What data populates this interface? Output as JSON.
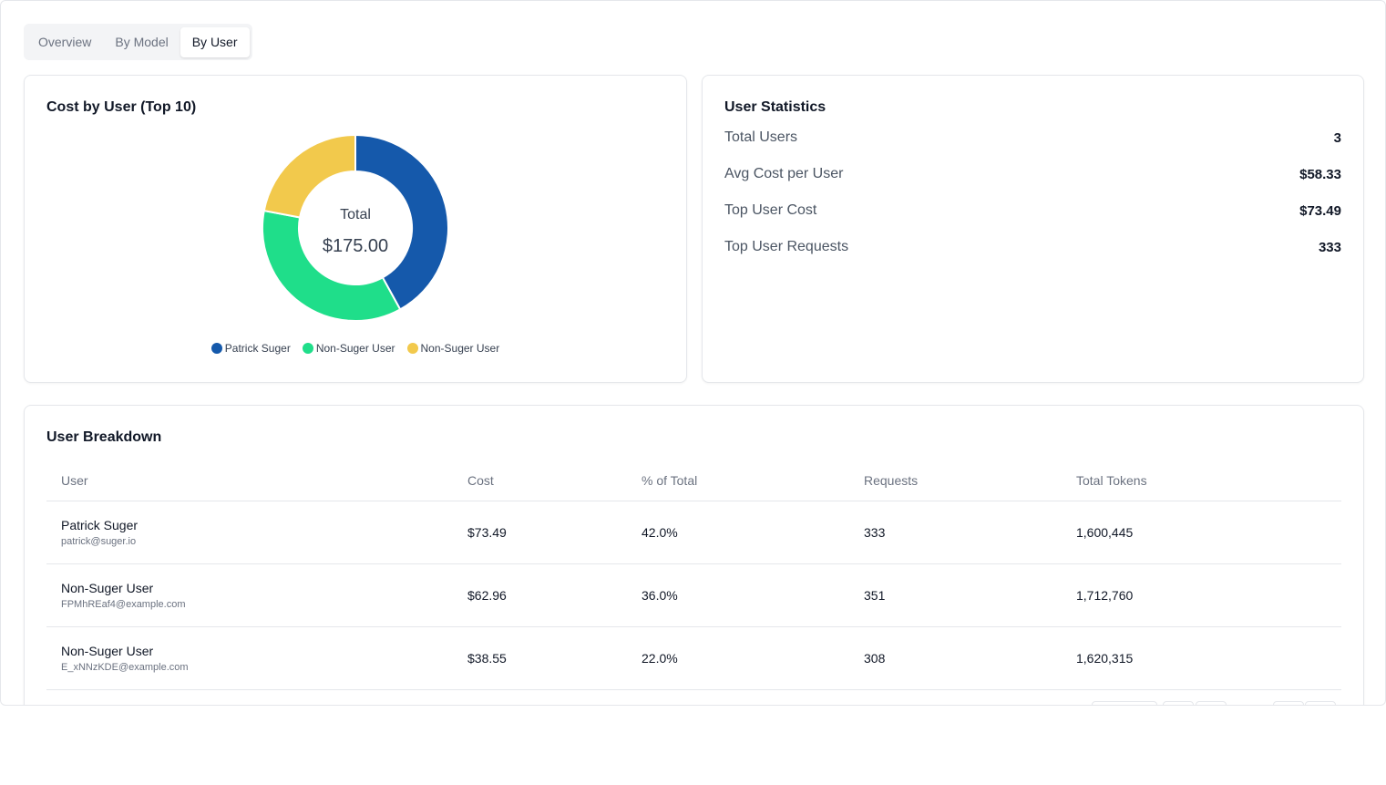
{
  "tabs": [
    {
      "label": "Overview",
      "active": false
    },
    {
      "label": "By Model",
      "active": false
    },
    {
      "label": "By User",
      "active": true
    }
  ],
  "cost_chart": {
    "title": "Cost by User (Top 10)",
    "center_label": "Total",
    "center_value": "$175.00",
    "chart_data": {
      "type": "pie",
      "title": "Cost by User (Top 10)",
      "categories": [
        "Patrick Suger",
        "Non-Suger User",
        "Non-Suger User"
      ],
      "values": [
        73.49,
        62.96,
        38.55
      ],
      "colors": [
        "#1559ab",
        "#1fde8a",
        "#f2c94c"
      ],
      "legend_position": "bottom"
    }
  },
  "stats": {
    "title": "User Statistics",
    "rows": [
      {
        "label": "Total Users",
        "value": "3"
      },
      {
        "label": "Avg Cost per User",
        "value": "$58.33"
      },
      {
        "label": "Top User Cost",
        "value": "$73.49"
      },
      {
        "label": "Top User Requests",
        "value": "333"
      }
    ]
  },
  "breakdown": {
    "title": "User Breakdown",
    "columns": [
      "User",
      "Cost",
      "% of Total",
      "Requests",
      "Total Tokens"
    ],
    "rows": [
      {
        "name": "Patrick Suger",
        "email": "patrick@suger.io",
        "cost": "$73.49",
        "pct": "42.0%",
        "requests": "333",
        "tokens": "1,600,445"
      },
      {
        "name": "Non-Suger User",
        "email": "FPMhREaf4@example.com",
        "cost": "$62.96",
        "pct": "36.0%",
        "requests": "351",
        "tokens": "1,712,760"
      },
      {
        "name": "Non-Suger User",
        "email": "E_xNNzKDE@example.com",
        "cost": "$38.55",
        "pct": "22.0%",
        "requests": "308",
        "tokens": "1,620,315"
      }
    ]
  }
}
